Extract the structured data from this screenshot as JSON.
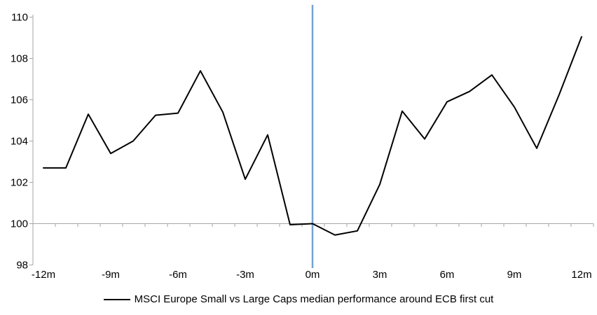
{
  "chart_data": {
    "type": "line",
    "title": "",
    "legend_label": "MSCI Europe Small vs Large Caps median performance around ECB first cut",
    "legend_position": "bottom-center",
    "x": [
      -12,
      -11,
      -10,
      -9,
      -8,
      -7,
      -6,
      -5,
      -4,
      -3,
      -2,
      -1,
      0,
      1,
      2,
      3,
      4,
      5,
      6,
      7,
      8,
      9,
      10,
      11,
      12
    ],
    "xlim": [
      -12,
      12
    ],
    "x_tick_months": [
      -12,
      -9,
      -6,
      -3,
      0,
      3,
      6,
      9,
      12
    ],
    "x_tick_labels": [
      "-12m",
      "-9m",
      "-6m",
      "-3m",
      "0m",
      "3m",
      "6m",
      "9m",
      "12m"
    ],
    "y_ticks": [
      110,
      108,
      106,
      104,
      102,
      100,
      98
    ],
    "ylim": [
      98,
      110
    ],
    "grid": "off",
    "baseline_value": 100,
    "event_line_x": 0,
    "series": [
      {
        "name": "MSCI Europe Small vs Large Caps median performance around ECB first cut",
        "color": "#000000",
        "values": [
          102.7,
          102.7,
          105.3,
          103.4,
          104.0,
          105.25,
          105.35,
          107.4,
          105.4,
          102.15,
          104.3,
          99.95,
          100.0,
          99.45,
          99.65,
          101.9,
          105.45,
          104.1,
          105.9,
          106.4,
          107.2,
          105.65,
          103.65,
          106.25,
          109.05
        ]
      }
    ],
    "colors": {
      "axis": "#a6a6a6",
      "event_line": "#74a3d2",
      "series_line": "#000000",
      "text": "#000000",
      "background": "#ffffff"
    }
  }
}
